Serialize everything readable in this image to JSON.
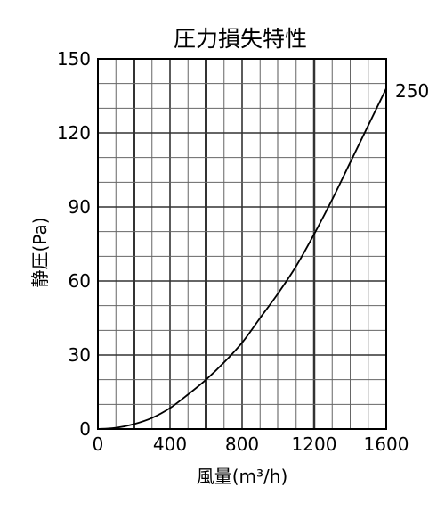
{
  "chart_data": {
    "type": "line",
    "title": "圧力損失特性",
    "xlabel": "風量(m³/h)",
    "ylabel": "静圧(Pa)",
    "xlim": [
      0,
      1600
    ],
    "ylim": [
      0,
      150
    ],
    "x_ticks": [
      0,
      400,
      800,
      1200,
      1600
    ],
    "x_tick_labels": [
      "0",
      "400",
      "800",
      "1200",
      "1600"
    ],
    "y_ticks": [
      0,
      30,
      60,
      90,
      120,
      150
    ],
    "y_tick_labels": [
      "0",
      "30",
      "60",
      "90",
      "120",
      "150"
    ],
    "grid": true,
    "series": [
      {
        "name": "250",
        "x": [
          0,
          100,
          200,
          300,
          400,
          500,
          600,
          700,
          800,
          900,
          1000,
          1100,
          1200,
          1300,
          1400,
          1500,
          1600
        ],
        "y": [
          0,
          0.5,
          2,
          4.5,
          8.5,
          14,
          20,
          27,
          35,
          45,
          55,
          66,
          79,
          93,
          108,
          123,
          138
        ]
      }
    ],
    "colors": {
      "line": "#000000",
      "axis": "#000000",
      "grid_major": "#333333",
      "grid_minor": "#666666",
      "grid_highlight": "#aaaaaa"
    }
  }
}
